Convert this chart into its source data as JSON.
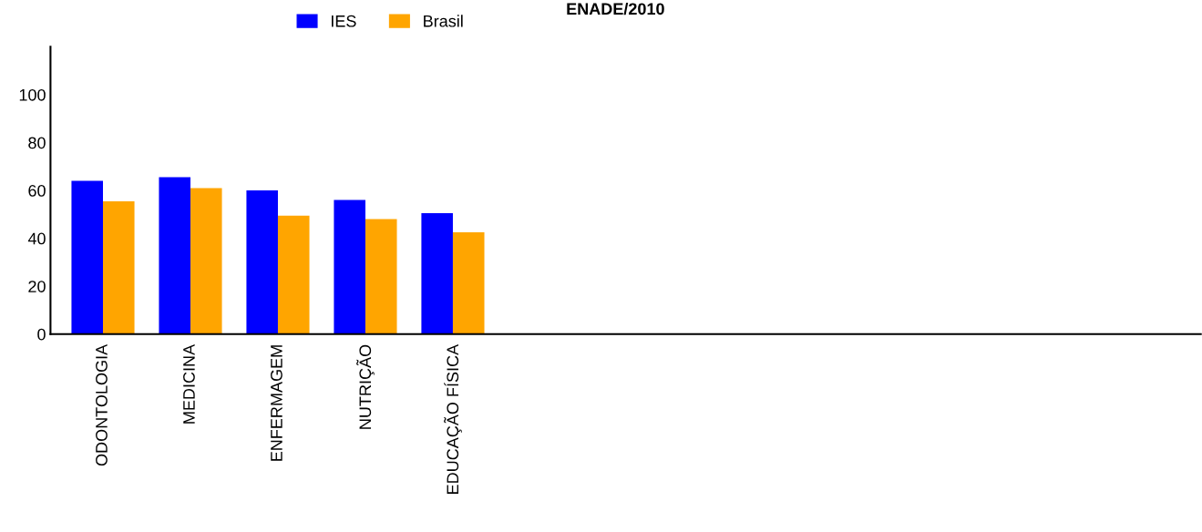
{
  "chart_data": {
    "type": "bar",
    "title": "ENADE/2010",
    "categories": [
      "ODONTOLOGIA",
      "MEDICINA",
      "ENFERMAGEM",
      "NUTRIÇÃO",
      "EDUCAÇÃO FÍSICA",
      null,
      null,
      null,
      null,
      null,
      null,
      null,
      null
    ],
    "series": [
      {
        "name": "IES",
        "color": "#0000ff",
        "values": [
          64,
          65.5,
          60,
          56,
          50.5,
          null,
          null,
          null,
          null,
          null,
          null,
          null,
          null
        ]
      },
      {
        "name": "Brasil",
        "color": "#ffa500",
        "values": [
          55.5,
          61,
          49.5,
          48,
          42.5,
          null,
          null,
          null,
          null,
          null,
          null,
          null,
          null
        ]
      }
    ],
    "ylim": [
      0,
      120
    ],
    "yticks": [
      0,
      20,
      40,
      60,
      80,
      100
    ],
    "grid": false,
    "legend": "top"
  }
}
